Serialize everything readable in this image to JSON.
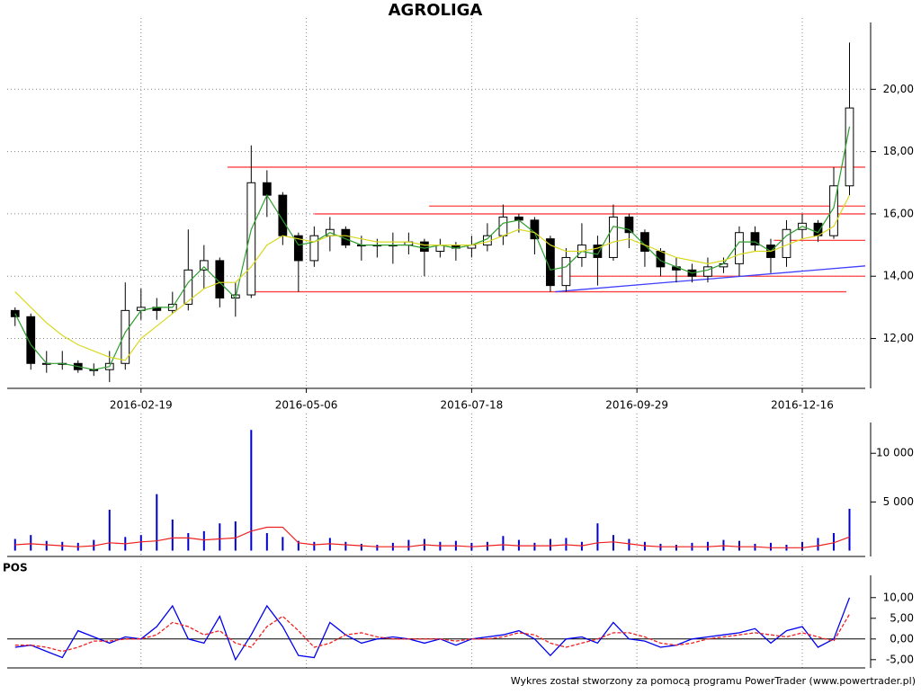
{
  "chart_data": [
    {
      "type": "candlestick",
      "title": "AGROLIGA",
      "x": [
        0,
        1,
        2,
        3,
        4,
        5,
        6,
        7,
        8,
        9,
        10,
        11,
        12,
        13,
        14,
        15,
        16,
        17,
        18,
        19,
        20,
        21,
        22,
        23,
        24,
        25,
        26,
        27,
        28,
        29,
        30,
        31,
        32,
        33,
        34,
        35,
        36,
        37,
        38,
        39,
        40,
        41,
        42,
        43,
        44,
        45,
        46,
        47,
        48,
        49,
        50,
        51,
        52,
        53
      ],
      "open": [
        12.9,
        12.7,
        11.2,
        11.2,
        11.2,
        11.0,
        11.0,
        11.2,
        12.9,
        13.0,
        12.9,
        13.1,
        14.2,
        14.5,
        13.3,
        13.4,
        17.0,
        16.6,
        15.3,
        14.5,
        15.3,
        15.5,
        15.0,
        15.0,
        15.0,
        15.0,
        15.1,
        14.8,
        15.0,
        14.9,
        15.0,
        15.3,
        15.9,
        15.8,
        15.2,
        13.7,
        14.6,
        15.0,
        14.6,
        15.9,
        15.4,
        14.8,
        14.3,
        14.2,
        14.0,
        14.3,
        14.4,
        15.4,
        15.0,
        14.6,
        15.5,
        15.7,
        15.3,
        16.9
      ],
      "high": [
        13.0,
        12.8,
        11.6,
        11.6,
        11.3,
        11.2,
        11.6,
        13.8,
        13.6,
        13.3,
        13.5,
        15.5,
        15.0,
        14.6,
        13.8,
        18.2,
        17.4,
        16.7,
        15.4,
        15.6,
        15.9,
        15.6,
        15.3,
        15.2,
        15.4,
        15.4,
        15.2,
        15.2,
        15.1,
        15.3,
        15.7,
        16.3,
        16.0,
        15.9,
        15.3,
        14.9,
        15.7,
        15.3,
        16.3,
        16.0,
        15.5,
        14.9,
        14.6,
        14.4,
        14.6,
        14.6,
        15.6,
        15.6,
        15.2,
        15.8,
        16.0,
        15.8,
        17.5,
        21.5
      ],
      "low": [
        12.4,
        11.0,
        10.9,
        11.0,
        10.9,
        10.8,
        10.6,
        11.0,
        12.6,
        12.6,
        12.8,
        12.9,
        13.6,
        13.0,
        12.7,
        13.3,
        15.9,
        15.0,
        13.5,
        14.3,
        14.8,
        14.9,
        14.5,
        14.6,
        14.4,
        14.7,
        14.0,
        14.6,
        14.5,
        14.6,
        14.8,
        15.0,
        15.4,
        14.7,
        13.5,
        13.5,
        14.3,
        13.7,
        14.5,
        14.9,
        14.3,
        14.0,
        13.8,
        13.8,
        13.8,
        14.1,
        14.0,
        14.8,
        14.1,
        14.3,
        15.2,
        15.1,
        15.2,
        16.6
      ],
      "close": [
        12.7,
        11.2,
        11.2,
        11.2,
        11.0,
        11.0,
        11.2,
        12.9,
        13.0,
        12.9,
        13.1,
        14.2,
        14.5,
        13.3,
        13.4,
        17.0,
        16.6,
        15.3,
        14.5,
        15.3,
        15.5,
        15.0,
        15.0,
        15.0,
        15.0,
        15.1,
        14.8,
        15.0,
        14.9,
        15.0,
        15.3,
        15.9,
        15.8,
        15.2,
        13.7,
        14.6,
        15.0,
        14.6,
        15.9,
        15.4,
        14.8,
        14.3,
        14.2,
        14.0,
        14.3,
        14.4,
        15.4,
        15.0,
        14.6,
        15.5,
        15.7,
        15.3,
        16.9,
        19.4
      ],
      "up_color": "#ffffff",
      "down_color": "#000000",
      "wick_color": "#000000",
      "series": [
        {
          "color": "#2e9e2e",
          "values": [
            12.8,
            11.8,
            11.2,
            11.2,
            11.1,
            11.0,
            11.1,
            12.2,
            12.9,
            13.0,
            13.0,
            13.8,
            14.3,
            13.8,
            13.3,
            15.5,
            16.6,
            15.8,
            15.0,
            15.1,
            15.4,
            15.2,
            15.0,
            15.0,
            15.0,
            15.0,
            14.9,
            15.0,
            14.9,
            15.0,
            15.2,
            15.7,
            15.8,
            15.4,
            14.2,
            14.3,
            14.8,
            14.7,
            15.6,
            15.5,
            15.0,
            14.5,
            14.3,
            14.1,
            14.2,
            14.4,
            15.1,
            15.1,
            14.8,
            15.3,
            15.6,
            15.4,
            16.2,
            18.8
          ]
        },
        {
          "color": "#d8d820",
          "values": [
            13.5,
            13.0,
            12.5,
            12.1,
            11.8,
            11.6,
            11.4,
            11.3,
            12.0,
            12.4,
            12.8,
            13.2,
            13.6,
            13.8,
            13.8,
            14.3,
            15.0,
            15.3,
            15.2,
            15.1,
            15.3,
            15.3,
            15.2,
            15.1,
            15.1,
            15.1,
            15.0,
            15.0,
            15.0,
            15.0,
            15.1,
            15.3,
            15.5,
            15.4,
            15.0,
            14.8,
            14.8,
            14.9,
            15.1,
            15.2,
            15.0,
            14.8,
            14.6,
            14.5,
            14.4,
            14.5,
            14.7,
            14.8,
            14.8,
            15.0,
            15.2,
            15.3,
            15.6,
            16.6
          ]
        }
      ],
      "lines": [
        {
          "x": [
            13.5,
            54
          ],
          "y": [
            17.5,
            17.5
          ],
          "color": "#ff4040"
        },
        {
          "x": [
            26.3,
            54
          ],
          "y": [
            16.25,
            16.25
          ],
          "color": "#ff4040"
        },
        {
          "x": [
            19.0,
            54
          ],
          "y": [
            16.0,
            16.0
          ],
          "color": "#ff4040"
        },
        {
          "x": [
            48.2,
            54
          ],
          "y": [
            15.15,
            15.15
          ],
          "color": "#ff4040"
        },
        {
          "x": [
            34.5,
            54
          ],
          "y": [
            14.0,
            14.0
          ],
          "color": "#ff4040"
        },
        {
          "x": [
            15.2,
            52.8
          ],
          "y": [
            13.5,
            13.5
          ],
          "color": "#ff4040"
        },
        {
          "x": [
            34.3,
            54
          ],
          "y": [
            13.5,
            14.33
          ],
          "color": "#4040ff"
        }
      ],
      "xlim": [
        -0.5,
        54
      ],
      "ylim": [
        10.4,
        22.0
      ],
      "xticks": [
        {
          "value": 8,
          "label": "2016-02-19"
        },
        {
          "value": 18.5,
          "label": "2016-05-06"
        },
        {
          "value": 29,
          "label": "2016-07-18"
        },
        {
          "value": 39.5,
          "label": "2016-09-29"
        },
        {
          "value": 50,
          "label": "2016-12-16"
        }
      ],
      "yticks": [
        {
          "value": 12,
          "label": "12,00"
        },
        {
          "value": 14,
          "label": "14,00"
        },
        {
          "value": 16,
          "label": "16,00"
        },
        {
          "value": 18,
          "label": "18,00"
        },
        {
          "value": 20,
          "label": "20,00"
        }
      ],
      "grid": true
    },
    {
      "type": "bar",
      "x": [
        0,
        1,
        2,
        3,
        4,
        5,
        6,
        7,
        8,
        9,
        10,
        11,
        12,
        13,
        14,
        15,
        16,
        17,
        18,
        19,
        20,
        21,
        22,
        23,
        24,
        25,
        26,
        27,
        28,
        29,
        30,
        31,
        32,
        33,
        34,
        35,
        36,
        37,
        38,
        39,
        40,
        41,
        42,
        43,
        44,
        45,
        46,
        47,
        48,
        49,
        50,
        51,
        52,
        53
      ],
      "values": [
        1200,
        1600,
        1000,
        900,
        800,
        1100,
        4200,
        1400,
        1600,
        5800,
        3200,
        1800,
        2000,
        2800,
        3000,
        12400,
        1800,
        1400,
        1000,
        900,
        1300,
        900,
        700,
        600,
        800,
        1100,
        1200,
        900,
        1000,
        800,
        900,
        1500,
        1100,
        800,
        1200,
        1300,
        900,
        2800,
        1600,
        1200,
        900,
        700,
        600,
        800,
        900,
        1100,
        1000,
        700,
        800,
        600,
        900,
        1300,
        1800,
        4300
      ],
      "color": "#0000cc",
      "series": [
        {
          "color": "#ee2020",
          "values": [
            600,
            700,
            600,
            500,
            400,
            500,
            800,
            700,
            900,
            1000,
            1300,
            1300,
            1100,
            1200,
            1300,
            2000,
            2400,
            2400,
            800,
            600,
            700,
            600,
            500,
            400,
            400,
            400,
            600,
            500,
            500,
            400,
            500,
            600,
            500,
            500,
            500,
            600,
            500,
            800,
            900,
            700,
            500,
            400,
            400,
            400,
            400,
            500,
            400,
            400,
            300,
            300,
            300,
            500,
            800,
            1400
          ]
        }
      ],
      "xlim": [
        -0.5,
        54
      ],
      "ylim": [
        -600,
        12700
      ],
      "xticks": [
        8,
        18.5,
        29,
        39.5,
        50
      ],
      "yticks": [
        {
          "value": 5000,
          "label": "5 000"
        },
        {
          "value": 10000,
          "label": "10 000"
        }
      ],
      "grid": true
    },
    {
      "type": "line",
      "title": "POS",
      "x": [
        0,
        1,
        2,
        3,
        4,
        5,
        6,
        7,
        8,
        9,
        10,
        11,
        12,
        13,
        14,
        15,
        16,
        17,
        18,
        19,
        20,
        21,
        22,
        23,
        24,
        25,
        26,
        27,
        28,
        29,
        30,
        31,
        32,
        33,
        34,
        35,
        36,
        37,
        38,
        39,
        40,
        41,
        42,
        43,
        44,
        45,
        46,
        47,
        48,
        49,
        50,
        51,
        52,
        53
      ],
      "series": [
        {
          "color": "#0000ee",
          "dashed": false,
          "values": [
            -2,
            -1.5,
            -3,
            -4.5,
            2,
            0.5,
            -1,
            0.5,
            0,
            3,
            8,
            0,
            -1,
            5.5,
            -5,
            1,
            8,
            3,
            -4,
            -4.5,
            4,
            1,
            -1,
            0,
            0.5,
            0,
            -1,
            0,
            -1.5,
            0,
            0.5,
            1,
            2,
            0,
            -4,
            0,
            0.5,
            -1,
            4,
            0,
            -0.5,
            -2,
            -1.5,
            0,
            0.5,
            1,
            1.5,
            2.5,
            -1,
            2,
            3,
            -2,
            0,
            10
          ]
        },
        {
          "color": "#ee2020",
          "dashed": true,
          "values": [
            -1.5,
            -1.5,
            -2,
            -3,
            -2,
            -0.5,
            -0.5,
            0,
            0,
            1,
            4,
            3,
            1,
            2,
            -1,
            -2,
            3,
            5.5,
            2,
            -2,
            -1,
            1,
            1.5,
            0.5,
            0,
            0,
            0,
            0,
            -0.5,
            0,
            0,
            0.5,
            1.5,
            1,
            -1,
            -2,
            -1,
            0,
            1.5,
            1.5,
            0.5,
            -1,
            -1.5,
            -1,
            0,
            0.5,
            1,
            1.5,
            1,
            0.5,
            1.5,
            0.5,
            -0.5,
            6
          ]
        }
      ],
      "xlim": [
        -0.5,
        54
      ],
      "ylim": [
        -7,
        14.3
      ],
      "xticks": [
        8,
        18.5,
        29,
        39.5,
        50
      ],
      "yticks": [
        {
          "value": -5,
          "label": "-5,00"
        },
        {
          "value": 0,
          "label": "0,00"
        },
        {
          "value": 5,
          "label": "5,00"
        },
        {
          "value": 10,
          "label": "10,00"
        }
      ],
      "grid": true
    }
  ],
  "footer": "Wykres został stworzony za pomocą programu PowerTrader (www.powertrader.pl)"
}
